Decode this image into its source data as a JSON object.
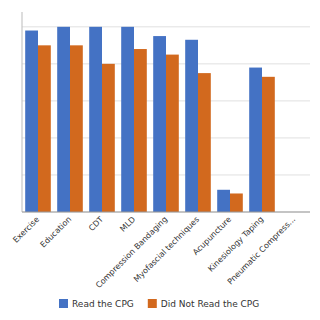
{
  "chart_data": {
    "type": "bar",
    "categories": [
      "Exercise",
      "Education",
      "CDT",
      "MLD",
      "Compression Bandaging",
      "Myofascial techniques",
      "Acupuncture",
      "Kinesiology Taping",
      "Pneumatic Compress..."
    ],
    "series": [
      {
        "name": "Read the CPG",
        "color": "#4472C4",
        "values": [
          98,
          100,
          100,
          100,
          95,
          93,
          12,
          78,
          0
        ]
      },
      {
        "name": "Did Not Read the CPG",
        "color": "#D2691E",
        "values": [
          90,
          90,
          80,
          88,
          85,
          75,
          10,
          73,
          0
        ]
      }
    ],
    "ylim": [
      0,
      108
    ],
    "yticks": [
      0,
      20,
      40,
      60,
      80,
      100
    ],
    "grid": true,
    "legend": "bottom",
    "tick_labels": "x"
  }
}
